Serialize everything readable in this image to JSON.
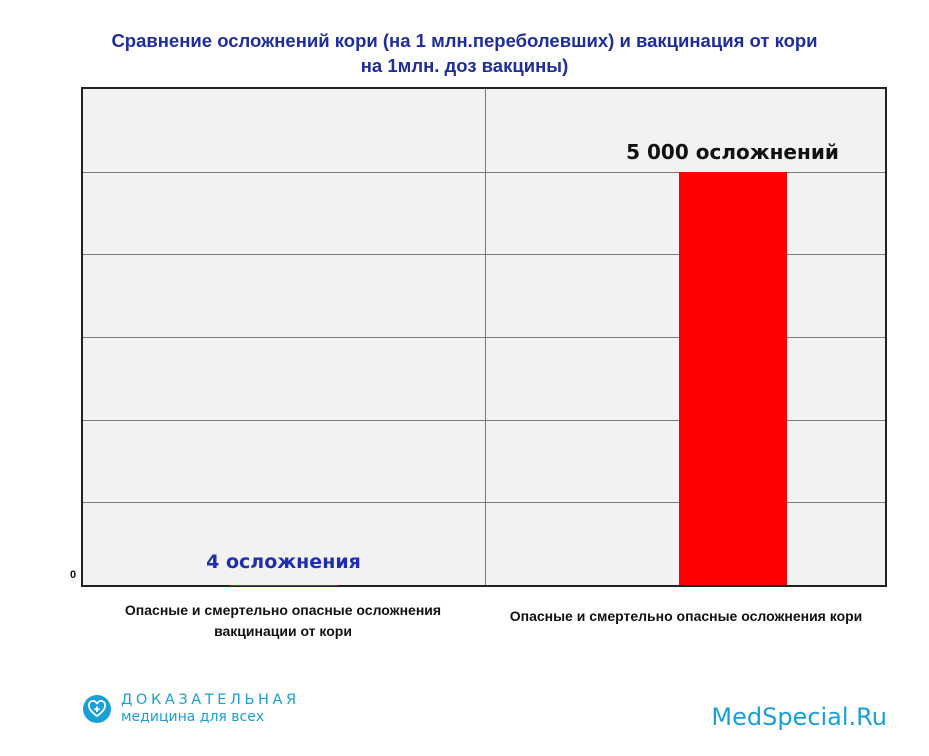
{
  "chart_data": {
    "type": "bar",
    "title_lines": [
      "Сравнение осложнений кори (на 1 млн.переболевших) и вакцинация от кори",
      "на 1млн. доз вакцины)"
    ],
    "categories": [
      [
        "Опасные и смертельно опасные осложнения",
        "вакцинации от кори"
      ],
      [
        "Опасные и смертельно опасные осложнения кори"
      ]
    ],
    "values": [
      4,
      5000
    ],
    "value_labels": [
      "4 осложнения",
      "5 000 осложнений"
    ],
    "y_tick_labels": [
      "0"
    ],
    "ylim": [
      0,
      6000
    ],
    "grid": true,
    "colors": {
      "bar": "#ff0000",
      "label_small": "#1f2eb0",
      "label_large": "#111111",
      "title": "#1f2e9a"
    }
  },
  "footer": {
    "logo_line1": "ДОКАЗАТЕЛЬНАЯ",
    "logo_line2": "медицина для всех",
    "logo_icon": "plus-heart-icon",
    "site": "MedSpecial.Ru"
  }
}
